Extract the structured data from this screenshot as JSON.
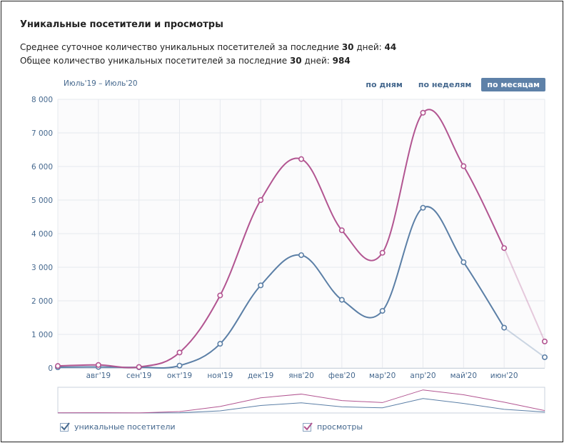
{
  "header": {
    "title": "Уникальные посетители и просмотры",
    "avg_prefix": "Среднее суточное количество уникальных посетителей за последние ",
    "avg_days": "30",
    "avg_mid": " дней: ",
    "avg_value": "44",
    "total_prefix": "Общее количество уникальных посетителей за последние ",
    "total_days": "30",
    "total_mid": " дней: ",
    "total_value": "984"
  },
  "range_label": "Июль'19 – Июль'20",
  "tabs": [
    {
      "label": "по дням",
      "active": false
    },
    {
      "label": "по неделям",
      "active": false
    },
    {
      "label": "по месяцам",
      "active": true
    }
  ],
  "legend": {
    "visitors": "уникальные посетители",
    "views": "просмотры"
  },
  "colors": {
    "visitors": "#5b7fa6",
    "views": "#b25591",
    "axis_text": "#45688e",
    "grid": "#e6e9ee"
  },
  "chart_data": {
    "type": "line",
    "categories": [
      "",
      "авг'19",
      "сен'19",
      "окт'19",
      "ноя'19",
      "дек'19",
      "янв'20",
      "фев'20",
      "мар'20",
      "апр'20",
      "май'20",
      "июн'20",
      ""
    ],
    "y_ticks": [
      "0",
      "1 000",
      "2 000",
      "3 000",
      "4 000",
      "5 000",
      "6 000",
      "7 000",
      "8 000"
    ],
    "ylim": [
      0,
      8000
    ],
    "grid": true,
    "series": [
      {
        "name": "уникальные посетители",
        "values": [
          20,
          30,
          20,
          70,
          720,
          2460,
          3360,
          2030,
          1700,
          4770,
          3150,
          1200,
          320
        ]
      },
      {
        "name": "просмотры",
        "values": [
          60,
          90,
          30,
          460,
          2160,
          5000,
          6220,
          4100,
          3430,
          7600,
          6010,
          3570,
          790
        ]
      }
    ]
  }
}
